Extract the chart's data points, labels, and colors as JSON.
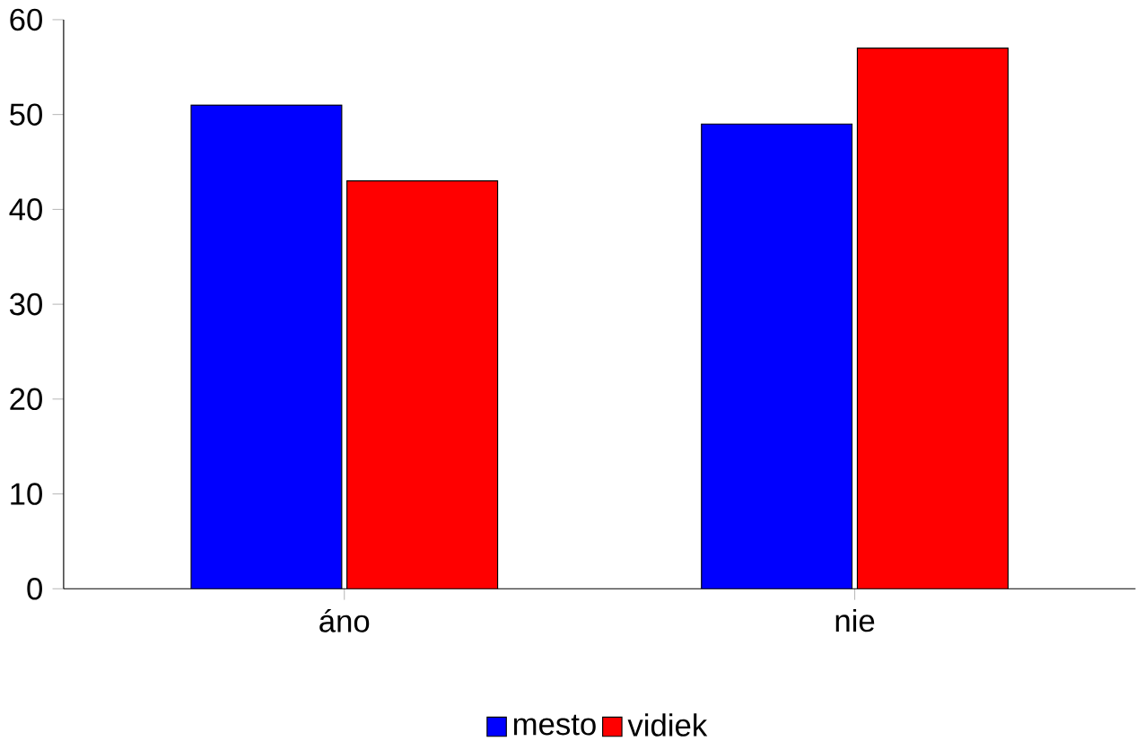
{
  "chart_data": {
    "type": "bar",
    "categories": [
      "áno",
      "nie"
    ],
    "series": [
      {
        "name": "mesto",
        "color": "#0000ff",
        "values": [
          51,
          49
        ]
      },
      {
        "name": "vidiek",
        "color": "#ff0000",
        "values": [
          43,
          57
        ]
      }
    ],
    "ylim": [
      0,
      60
    ],
    "yticks": [
      0,
      10,
      20,
      30,
      40,
      50,
      60
    ],
    "grid": false,
    "legend": "bottom"
  }
}
